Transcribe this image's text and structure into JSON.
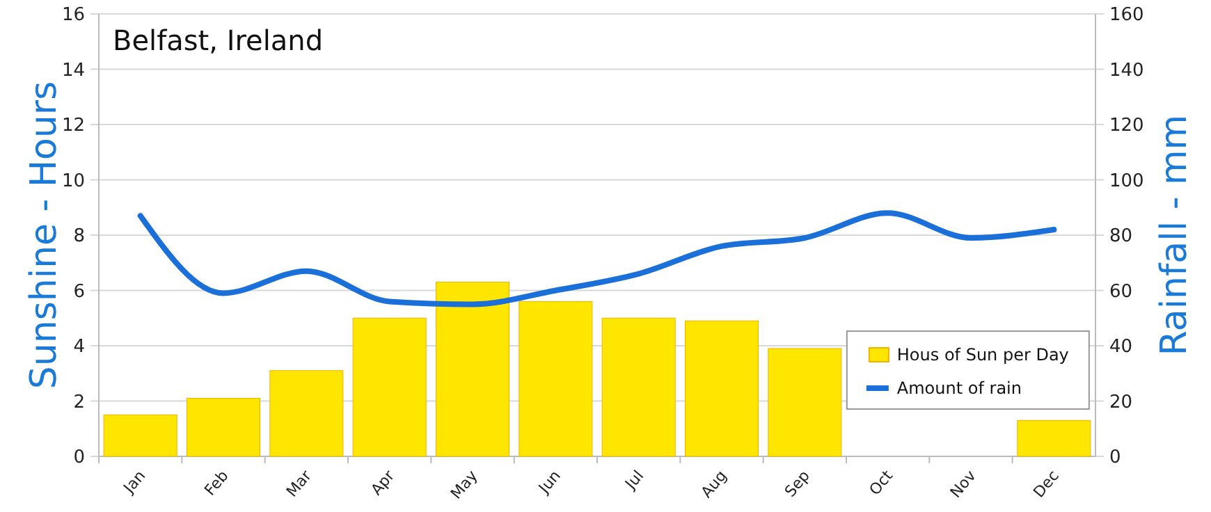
{
  "chart_data": {
    "type": "bar",
    "title": "Belfast, Ireland",
    "ylabel": "Sunshine - Hours",
    "y2label": "Rainfall - mm",
    "categories": [
      "Jan",
      "Feb",
      "Mar",
      "Apr",
      "May",
      "Jun",
      "Jul",
      "Aug",
      "Sep",
      "Oct",
      "Nov",
      "Dec"
    ],
    "series": [
      {
        "name": "Hous of Sun per Day",
        "color": "#ffe600",
        "values": [
          1.5,
          2.1,
          3.1,
          5.0,
          6.3,
          5.6,
          5.0,
          4.9,
          3.9,
          null,
          null,
          1.3
        ]
      },
      {
        "name": "Amount of rain",
        "type": "line",
        "axis": "y2",
        "color": "#1a6fd8",
        "values": [
          87,
          59,
          67,
          56,
          55,
          60,
          66,
          76,
          79,
          88,
          79,
          82
        ]
      }
    ],
    "ylim": [
      0,
      16
    ],
    "yticks": [
      0,
      2,
      4,
      6,
      8,
      10,
      12,
      14,
      16
    ],
    "y2lim": [
      0,
      160
    ],
    "y2ticks": [
      0,
      20,
      40,
      60,
      80,
      100,
      120,
      140,
      160
    ],
    "grid": "y",
    "legend": "bottom right"
  }
}
